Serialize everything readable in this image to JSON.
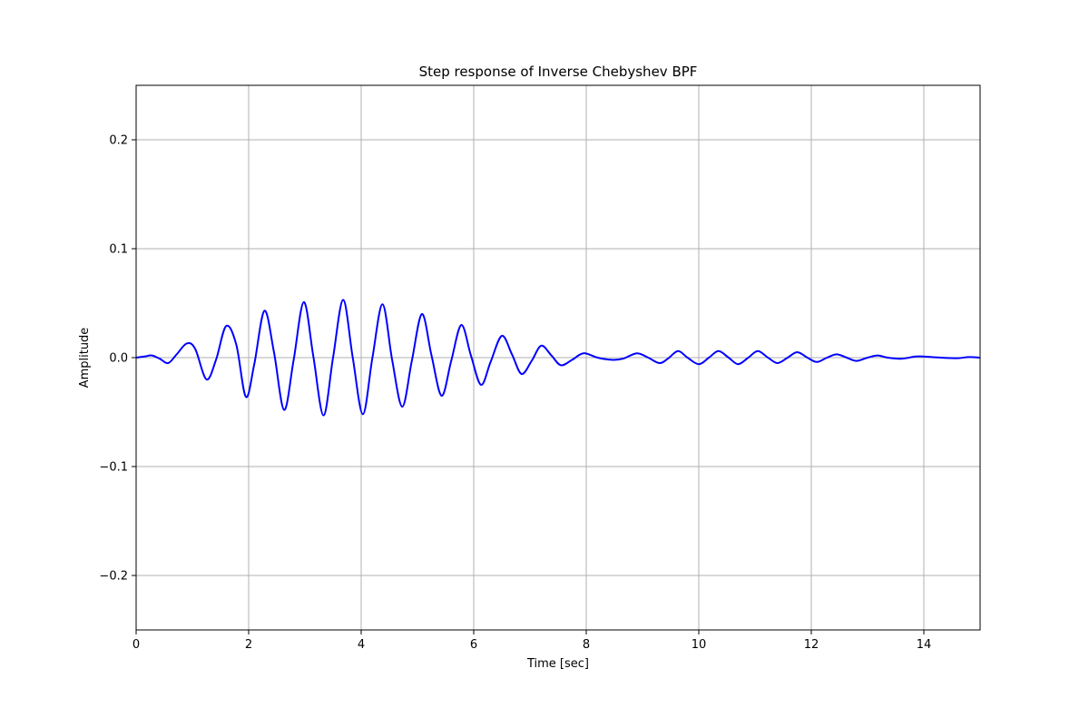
{
  "chart_data": {
    "type": "line",
    "title": "Step response of Inverse Chebyshev BPF",
    "xlabel": "Time  [sec]",
    "ylabel": "Amplitude",
    "xlim": [
      0,
      15
    ],
    "ylim": [
      -0.25,
      0.25
    ],
    "xticks": [
      0,
      2,
      4,
      6,
      8,
      10,
      12,
      14
    ],
    "xtick_labels": [
      "0",
      "2",
      "4",
      "6",
      "8",
      "10",
      "12",
      "14"
    ],
    "yticks": [
      -0.2,
      -0.1,
      0.0,
      0.1,
      0.2
    ],
    "ytick_labels": [
      "−0.2",
      "−0.1",
      "0.0",
      "0.1",
      "0.2"
    ],
    "grid": true,
    "series": [
      {
        "color": "#0000ff",
        "x": [
          0,
          0.15,
          0.28,
          0.42,
          0.57,
          0.72,
          0.9,
          1.05,
          1.25,
          1.42,
          1.6,
          1.78,
          1.95,
          2.1,
          2.28,
          2.45,
          2.63,
          2.8,
          2.98,
          3.15,
          3.33,
          3.5,
          3.68,
          3.85,
          4.03,
          4.2,
          4.38,
          4.55,
          4.73,
          4.9,
          5.08,
          5.25,
          5.43,
          5.6,
          5.78,
          5.95,
          6.13,
          6.3,
          6.5,
          6.68,
          6.85,
          7.03,
          7.2,
          7.38,
          7.55,
          7.75,
          7.95,
          8.2,
          8.45,
          8.65,
          8.9,
          9.1,
          9.3,
          9.45,
          9.63,
          9.8,
          10.0,
          10.18,
          10.35,
          10.53,
          10.7,
          10.88,
          11.05,
          11.23,
          11.4,
          11.58,
          11.75,
          11.93,
          12.1,
          12.28,
          12.45,
          12.63,
          12.8,
          13.0,
          13.18,
          13.35,
          13.6,
          13.85,
          14.0,
          14.3,
          14.6,
          14.8,
          15.0
        ],
        "y": [
          0.0,
          0.001,
          0.002,
          -0.001,
          -0.005,
          0.003,
          0.013,
          0.008,
          -0.02,
          -0.002,
          0.029,
          0.012,
          -0.036,
          -0.006,
          0.043,
          0.005,
          -0.048,
          -0.002,
          0.051,
          0.001,
          -0.053,
          0.0,
          0.053,
          0.0,
          -0.052,
          0.0,
          0.049,
          -0.002,
          -0.045,
          -0.003,
          0.04,
          0.002,
          -0.035,
          -0.003,
          0.03,
          0.002,
          -0.025,
          -0.004,
          0.02,
          0.003,
          -0.015,
          -0.003,
          0.011,
          0.002,
          -0.007,
          -0.002,
          0.004,
          0.0,
          -0.002,
          -0.001,
          0.004,
          0.0,
          -0.005,
          -0.001,
          0.006,
          0.0,
          -0.006,
          0.0,
          0.006,
          0.0,
          -0.006,
          0.0,
          0.006,
          0.0,
          -0.005,
          0.0,
          0.005,
          0.0,
          -0.004,
          0.0,
          0.003,
          0.0,
          -0.003,
          0.0,
          0.002,
          0.0,
          -0.001,
          0.001,
          0.001,
          0.0,
          -0.0005,
          0.0005,
          0.0
        ]
      }
    ]
  }
}
